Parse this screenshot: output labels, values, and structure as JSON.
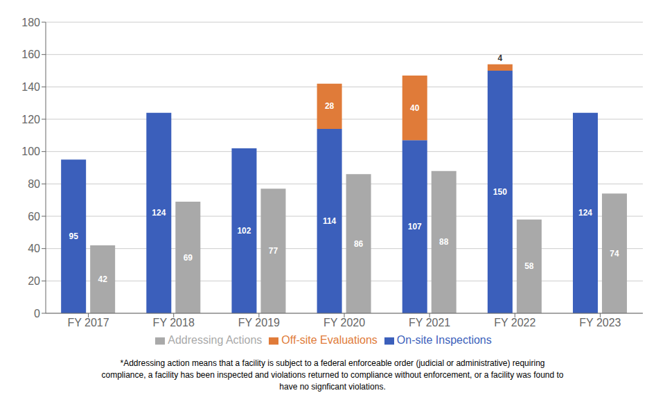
{
  "chart_data": {
    "type": "bar",
    "categories": [
      "FY 2017",
      "FY 2018",
      "FY 2019",
      "FY 2020",
      "FY 2021",
      "FY 2022",
      "FY 2023"
    ],
    "series": [
      {
        "name": "On-site Inspections",
        "color": "#3B5FBB",
        "stacked": true,
        "values": [
          95,
          124,
          102,
          114,
          107,
          150,
          124
        ]
      },
      {
        "name": "Off-site Evaluations",
        "color": "#E07B39",
        "stacked": true,
        "values": [
          0,
          0,
          0,
          28,
          40,
          4,
          0
        ]
      },
      {
        "name": "Addressing Actions",
        "color": "#A9A9A9",
        "values": [
          42,
          69,
          77,
          86,
          88,
          58,
          74
        ]
      }
    ],
    "ylim": [
      0,
      180
    ],
    "yticks": [
      0,
      20,
      40,
      60,
      80,
      100,
      120,
      140,
      160,
      180
    ],
    "grid": true,
    "data_labels": true,
    "annotations": [
      "*Addressing action means that a facility is subject to a federal enforceable order (judicial or administrative) requiring",
      "compliance, a facility has been inspected and violations returned to compliance without enforcement, or a facility was found to",
      "have no signficant violations."
    ]
  }
}
